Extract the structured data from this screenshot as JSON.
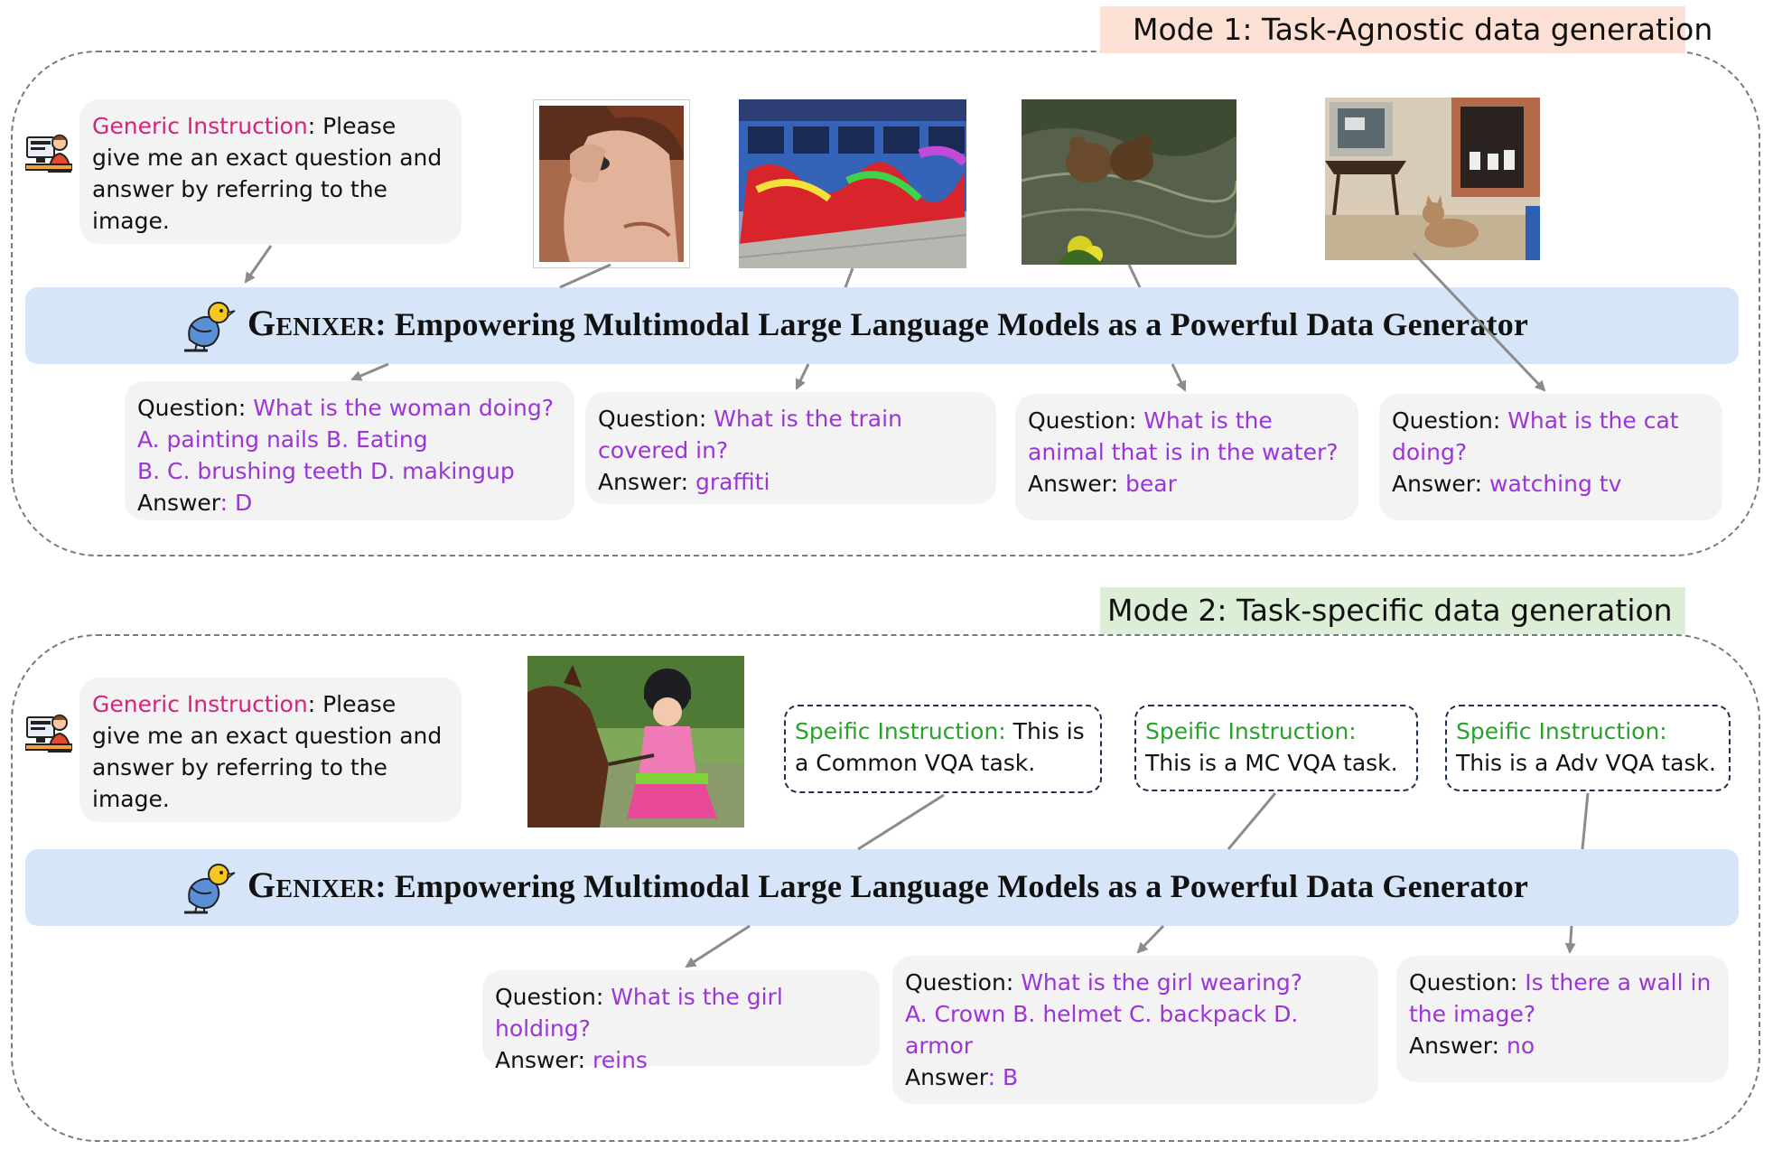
{
  "mode1": {
    "label": "Mode 1: Task-Agnostic data generation",
    "label_bg": "#fbe0d3",
    "instruction": {
      "prefix": "Generic Instruction",
      "sep": ": ",
      "text": "Please give me an exact question and answer by referring to the image."
    },
    "banner": {
      "brand": "Genixer",
      "rest": ": Empowering Multimodal Large Language Models as a Powerful Data Generator"
    },
    "qa": [
      {
        "q_label": "Question",
        "sep": ": ",
        "question": "What is the woman doing?",
        "options": [
          "A. painting nails B. Eating",
          "B. C. brushing teeth D. makingup"
        ],
        "a_label": "Answer",
        "a_sep": ": ",
        "answer": "D"
      },
      {
        "q_label": "Question",
        "sep": ": ",
        "question": "What is the train covered in?",
        "a_label": "Answer",
        "a_sep": ": ",
        "answer": "graffiti"
      },
      {
        "q_label": "Question",
        "sep": ": ",
        "question": "What is the animal that is in the water?",
        "a_label": "Answer",
        "a_sep": ": ",
        "answer": "bear"
      },
      {
        "q_label": "Question",
        "sep": ": ",
        "question": "What is the cat doing?",
        "a_label": "Answer:",
        "a_sep": " ",
        "answer": "watching tv"
      }
    ]
  },
  "mode2": {
    "label": "Mode 2: Task-specific data generation",
    "label_bg": "#dcefd6",
    "instruction": {
      "prefix": "Generic Instruction",
      "sep": ": ",
      "text": "Please give me an exact question and answer by referring to the image."
    },
    "banner": {
      "brand": "Genixer",
      "rest": ": Empowering Multimodal Large Language Models as a Powerful Data Generator"
    },
    "specific": [
      {
        "prefix": "Speific Instruction:",
        "text": " This is a Common VQA task."
      },
      {
        "prefix": "Speific Instruction:",
        "text": "This is a MC VQA task."
      },
      {
        "prefix": "Speific Instruction:",
        "text": "This is a Adv VQA task."
      }
    ],
    "qa": [
      {
        "q_label": "Question",
        "sep": ": ",
        "question": "What is the girl holding?",
        "a_label": "Answer",
        "a_sep": ": ",
        "answer": "reins"
      },
      {
        "q_label": "Question",
        "sep": ": ",
        "question": "What is the girl wearing?",
        "options": [
          "A. Crown B. helmet C. backpack D. armor"
        ],
        "a_label": "Answer",
        "a_sep": ": ",
        "answer": "B"
      },
      {
        "q_label": "Question",
        "sep": ": ",
        "question": "Is there a wall in the image?",
        "a_label": "Answer",
        "a_sep": ": ",
        "answer": "no"
      }
    ]
  },
  "colors": {
    "banner": "#d6e6f8",
    "bubble": "#f3f3f3",
    "generic": "#d4247d",
    "qa_text": "#9b35d6",
    "specific": "#27a22a",
    "arrow": "#8c8c8c"
  },
  "icons": [
    "user-at-computer-icon",
    "bird-logo-icon"
  ]
}
